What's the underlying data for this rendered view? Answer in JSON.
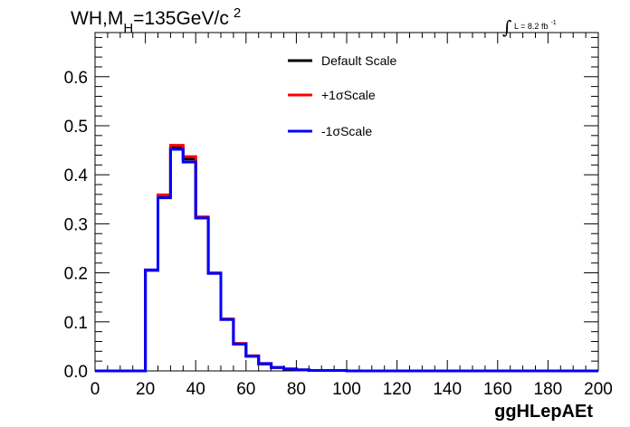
{
  "chart_data": {
    "type": "line",
    "title": {
      "prefix": "WH,M",
      "subscript": "H",
      "value": "=135GeV/c",
      "superscript": "2"
    },
    "lumi": {
      "integral": "∫",
      "text": "L = 8.2 fb",
      "superscript": "-1"
    },
    "xlabel": "ggHLepAEt",
    "ylabel": "",
    "xlim": [
      0,
      200
    ],
    "ylim": [
      0,
      0.69
    ],
    "x_ticks": [
      "0",
      "20",
      "40",
      "60",
      "80",
      "100",
      "120",
      "140",
      "160",
      "180",
      "200"
    ],
    "y_ticks": [
      "0.0",
      "0.1",
      "0.2",
      "0.3",
      "0.4",
      "0.5",
      "0.6"
    ],
    "bin_width": 5,
    "bin_edges_start": 0,
    "legend_position": "top-center",
    "series": [
      {
        "name": "Default Scale",
        "color": "#000000",
        "values": [
          0,
          0,
          0,
          0,
          0.205,
          0.357,
          0.455,
          0.432,
          0.312,
          0.199,
          0.105,
          0.055,
          0.03,
          0.014,
          0.007,
          0.004,
          0.002,
          0.001,
          0.001,
          0.001,
          0,
          0,
          0,
          0,
          0,
          0,
          0,
          0,
          0,
          0,
          0,
          0,
          0,
          0,
          0,
          0,
          0,
          0,
          0,
          0
        ]
      },
      {
        "name": "+1σScale",
        "color": "#ff0000",
        "values": [
          0,
          0,
          0,
          0,
          0.206,
          0.359,
          0.46,
          0.437,
          0.314,
          0.2,
          0.106,
          0.056,
          0.031,
          0.015,
          0.007,
          0.004,
          0.002,
          0.001,
          0.001,
          0.001,
          0,
          0,
          0,
          0,
          0,
          0,
          0,
          0,
          0,
          0,
          0,
          0,
          0,
          0,
          0,
          0,
          0,
          0,
          0,
          0
        ]
      },
      {
        "name": "-1σScale",
        "color": "#0000ff",
        "values": [
          0,
          0,
          0,
          0,
          0.206,
          0.353,
          0.452,
          0.426,
          0.312,
          0.199,
          0.105,
          0.055,
          0.03,
          0.015,
          0.007,
          0.004,
          0.002,
          0.001,
          0.001,
          0.001,
          0,
          0,
          0,
          0,
          0,
          0,
          0,
          0,
          0,
          0,
          0,
          0,
          0,
          0,
          0,
          0,
          0,
          0,
          0,
          0
        ]
      }
    ]
  }
}
